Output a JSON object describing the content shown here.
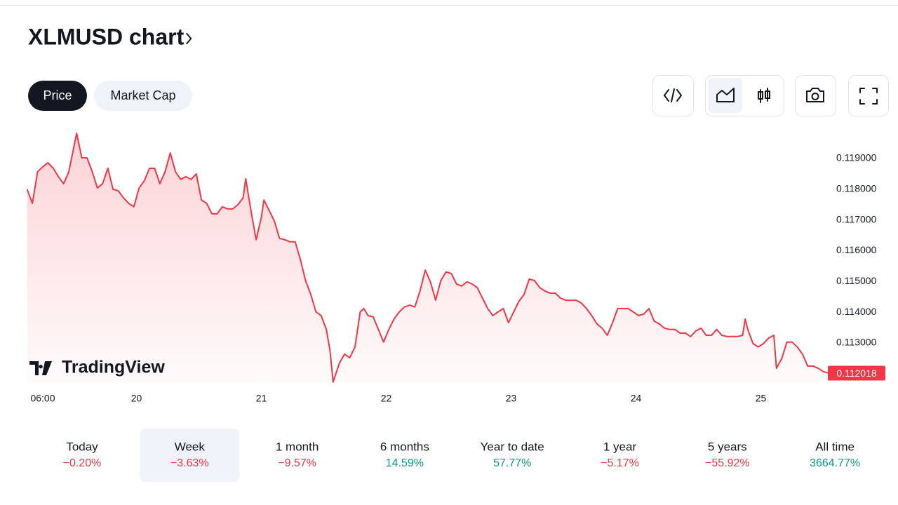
{
  "header": {
    "title": "XLMUSD chart"
  },
  "tabs": [
    "Price",
    "Market Cap"
  ],
  "chart_data": {
    "type": "area",
    "watermark": "TradingView",
    "color": "#f23645",
    "x": [
      3,
      4,
      5,
      6,
      7,
      8,
      9,
      10,
      11,
      12.5,
      13.5,
      14.5,
      15.5,
      16.5,
      17.5,
      18.5,
      19.5,
      20.5,
      21.5,
      22.5,
      23.5,
      24.5,
      25.5,
      26.5,
      27.5,
      28.5,
      29.5,
      30.5,
      31.5,
      32.5,
      33.5,
      34.5,
      35.5,
      36.5,
      37.5,
      38.5,
      39.5,
      40.5,
      41.5,
      42.5,
      43.5,
      44.5,
      45,
      46,
      47,
      48,
      48.5,
      49.5,
      50.5,
      51.5,
      52.5,
      53.5,
      54.5,
      55.5,
      56.5,
      57.5,
      58.5,
      59.5,
      60.5,
      61.2,
      61.8,
      63,
      64,
      65,
      66,
      67,
      67.7,
      68.5,
      69.5,
      70.5,
      71.5,
      72.5,
      73.5,
      74.5,
      75.5,
      76.5,
      77.5,
      78.5,
      79.5,
      80.5,
      81.5,
      82.5,
      83.5,
      84.5,
      85.5,
      86.5,
      87.5,
      88.5,
      89.5,
      90.5,
      91.5,
      92.5,
      93.5,
      94.5,
      95.5,
      96.5,
      97.5,
      98.5,
      99.5,
      100.5,
      101.5,
      102.5,
      103.5,
      104.5,
      105.5,
      106.5,
      107.5,
      108.5,
      109.5,
      110.5,
      111.5,
      112.5,
      113.5,
      114.5,
      115.5,
      116.5,
      117.5,
      118.5,
      119.5,
      120.5,
      121.5,
      122.5,
      123.5,
      124.5,
      125.5,
      126.5,
      127.5,
      128.5,
      129.5,
      130.5,
      131.5,
      132.5,
      133.5,
      134.5,
      135.5,
      136.5,
      137.5,
      138.5,
      139.5,
      140.5,
      141,
      141.5,
      142.5,
      143.5,
      144.5,
      145.5,
      146.5,
      147,
      148,
      149,
      150,
      151,
      152,
      153,
      154,
      155,
      156,
      157
    ],
    "values": [
      0.118,
      0.11754,
      0.11857,
      0.11873,
      0.11886,
      0.11868,
      0.11841,
      0.11818,
      0.11857,
      0.11982,
      0.11902,
      0.11902,
      0.11857,
      0.11804,
      0.11818,
      0.11868,
      0.118,
      0.11795,
      0.11772,
      0.11754,
      0.11743,
      0.11804,
      0.11827,
      0.11868,
      0.11868,
      0.11818,
      0.11857,
      0.11918,
      0.11857,
      0.11832,
      0.11841,
      0.11832,
      0.1185,
      0.11765,
      0.11754,
      0.1172,
      0.1172,
      0.11743,
      0.11736,
      0.11736,
      0.1175,
      0.11772,
      0.11834,
      0.11731,
      0.11636,
      0.11708,
      0.11765,
      0.11731,
      0.11697,
      0.1164,
      0.11636,
      0.11629,
      0.11629,
      0.11572,
      0.11503,
      0.11458,
      0.11401,
      0.11389,
      0.11344,
      0.11275,
      0.11173,
      0.11234,
      0.11264,
      0.11252,
      0.11287,
      0.11401,
      0.11412,
      0.11389,
      0.11385,
      0.11344,
      0.11303,
      0.11344,
      0.11378,
      0.11401,
      0.11417,
      0.11423,
      0.11417,
      0.11469,
      0.11537,
      0.11499,
      0.11439,
      0.11503,
      0.11531,
      0.11526,
      0.11492,
      0.11485,
      0.11499,
      0.11492,
      0.1148,
      0.11446,
      0.11412,
      0.11389,
      0.11401,
      0.11412,
      0.11366,
      0.11401,
      0.11435,
      0.11458,
      0.11508,
      0.11503,
      0.1148,
      0.11469,
      0.11462,
      0.11462,
      0.11446,
      0.11439,
      0.11439,
      0.11439,
      0.1143,
      0.11412,
      0.11389,
      0.11362,
      0.11348,
      0.11325,
      0.11366,
      0.11412,
      0.11412,
      0.11412,
      0.11401,
      0.11389,
      0.11394,
      0.11412,
      0.11371,
      0.11362,
      0.11348,
      0.11344,
      0.11344,
      0.11332,
      0.11332,
      0.11321,
      0.11339,
      0.11348,
      0.11325,
      0.11325,
      0.11344,
      0.11325,
      0.11321,
      0.11321,
      0.11321,
      0.11325,
      0.11378,
      0.11344,
      0.11298,
      0.11287,
      0.11298,
      0.11316,
      0.11325,
      0.11218,
      0.11248,
      0.11303,
      0.11303,
      0.11287,
      0.11264,
      0.11225,
      0.11225,
      0.11218,
      0.11207,
      0.112018
    ],
    "current_price": 0.112018,
    "xlim": [
      3,
      157
    ],
    "xticks": [
      {
        "value": 6,
        "label": "06:00"
      },
      {
        "value": 24,
        "label": "20"
      },
      {
        "value": 48,
        "label": "21"
      },
      {
        "value": 72,
        "label": "22"
      },
      {
        "value": 96,
        "label": "23"
      },
      {
        "value": 120,
        "label": "24"
      },
      {
        "value": 144,
        "label": "25"
      }
    ],
    "ylim": [
      0.1117,
      0.1199
    ],
    "yticks": [
      {
        "value": 0.119,
        "label": "0.119000"
      },
      {
        "value": 0.118,
        "label": "0.118000"
      },
      {
        "value": 0.117,
        "label": "0.117000"
      },
      {
        "value": 0.116,
        "label": "0.116000"
      },
      {
        "value": 0.115,
        "label": "0.115000"
      },
      {
        "value": 0.114,
        "label": "0.114000"
      },
      {
        "value": 0.113,
        "label": "0.113000"
      }
    ],
    "grid": false
  },
  "periods": [
    {
      "label": "Today",
      "change": "−0.20%"
    },
    {
      "label": "Week",
      "change": "−3.63%"
    },
    {
      "label": "1 month",
      "change": "−9.57%"
    },
    {
      "label": "6 months",
      "change": "14.59%"
    },
    {
      "label": "Year to date",
      "change": "57.77%"
    },
    {
      "label": "1 year",
      "change": "−5.17%"
    },
    {
      "label": "5 years",
      "change": "−55.92%"
    },
    {
      "label": "All time",
      "change": "3664.77%"
    }
  ]
}
